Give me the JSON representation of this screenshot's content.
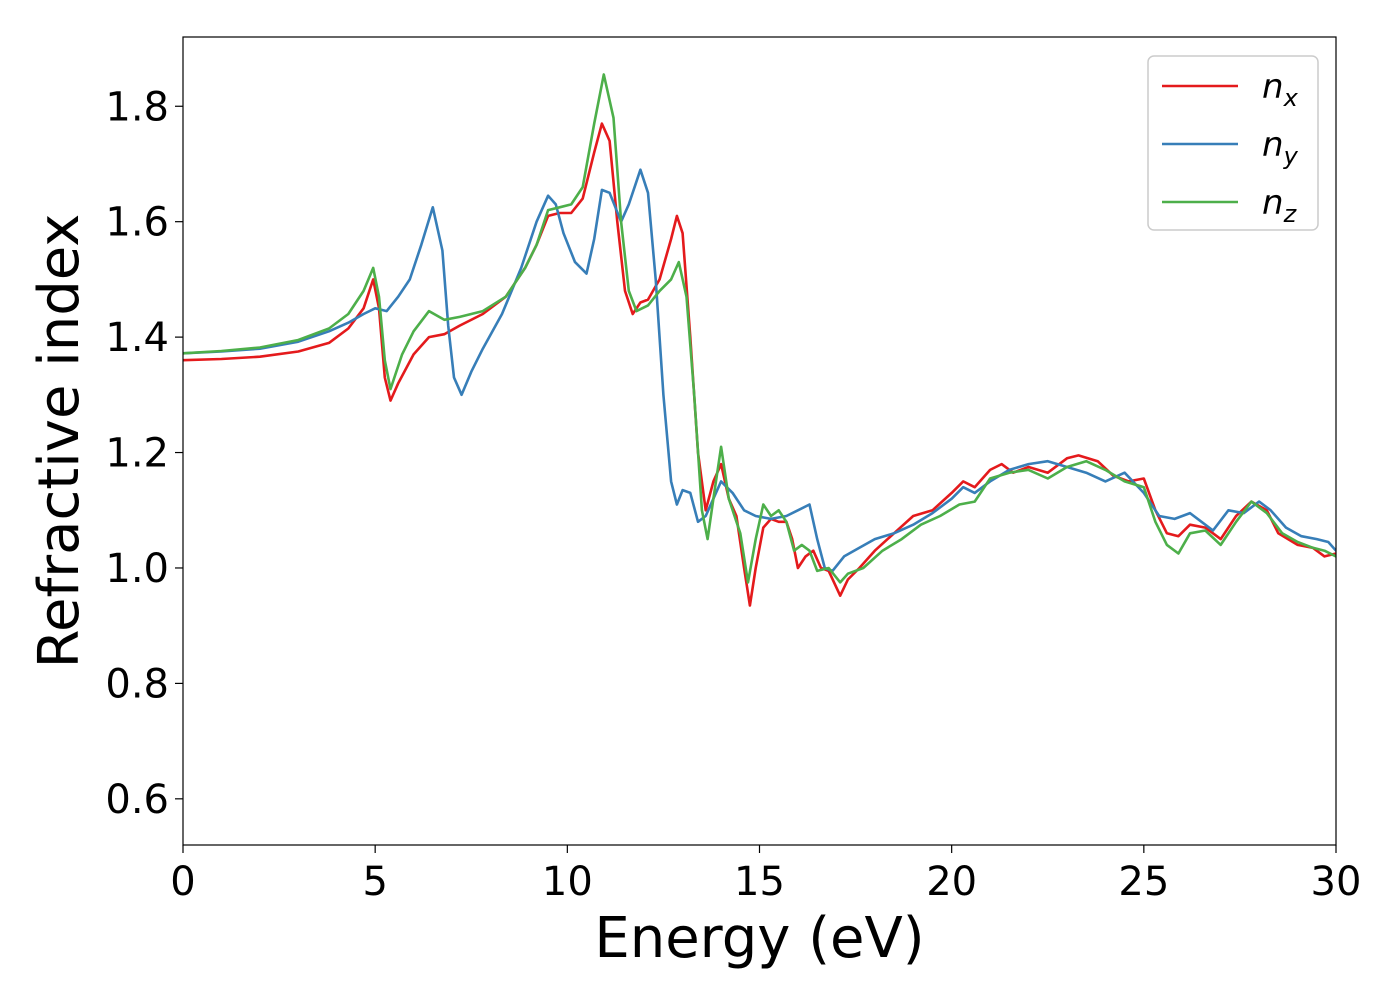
{
  "chart_data": {
    "type": "line",
    "xlabel": "Energy (eV)",
    "ylabel": "Refractive index",
    "xlim": [
      0,
      30
    ],
    "ylim": [
      0.52,
      1.92
    ],
    "xticks": [
      0,
      5,
      10,
      15,
      20,
      25,
      30
    ],
    "yticks": [
      0.6,
      0.8,
      1.0,
      1.2,
      1.4,
      1.6,
      1.8
    ],
    "ytick_labels": [
      "0.6",
      "0.8",
      "1.0",
      "1.2",
      "1.4",
      "1.6",
      "1.8"
    ],
    "grid": false,
    "legend_position": "top-right",
    "series": [
      {
        "name": "n",
        "subscript": "x",
        "color": "#e41a1c",
        "points": [
          [
            0,
            1.36
          ],
          [
            1,
            1.362
          ],
          [
            2,
            1.366
          ],
          [
            3,
            1.375
          ],
          [
            3.8,
            1.39
          ],
          [
            4.3,
            1.415
          ],
          [
            4.7,
            1.45
          ],
          [
            4.95,
            1.5
          ],
          [
            5.1,
            1.45
          ],
          [
            5.25,
            1.33
          ],
          [
            5.4,
            1.29
          ],
          [
            5.6,
            1.32
          ],
          [
            6,
            1.37
          ],
          [
            6.4,
            1.4
          ],
          [
            6.8,
            1.405
          ],
          [
            7.2,
            1.42
          ],
          [
            7.8,
            1.44
          ],
          [
            8.4,
            1.47
          ],
          [
            8.9,
            1.52
          ],
          [
            9.2,
            1.56
          ],
          [
            9.5,
            1.61
          ],
          [
            9.8,
            1.615
          ],
          [
            10.1,
            1.615
          ],
          [
            10.4,
            1.64
          ],
          [
            10.7,
            1.72
          ],
          [
            10.9,
            1.77
          ],
          [
            11.1,
            1.74
          ],
          [
            11.3,
            1.6
          ],
          [
            11.5,
            1.48
          ],
          [
            11.7,
            1.44
          ],
          [
            11.9,
            1.46
          ],
          [
            12.1,
            1.465
          ],
          [
            12.4,
            1.5
          ],
          [
            12.7,
            1.57
          ],
          [
            12.85,
            1.61
          ],
          [
            13,
            1.58
          ],
          [
            13.2,
            1.4
          ],
          [
            13.4,
            1.2
          ],
          [
            13.6,
            1.1
          ],
          [
            13.8,
            1.15
          ],
          [
            14,
            1.18
          ],
          [
            14.2,
            1.12
          ],
          [
            14.4,
            1.09
          ],
          [
            14.6,
            1.0
          ],
          [
            14.75,
            0.935
          ],
          [
            14.9,
            1.0
          ],
          [
            15.1,
            1.07
          ],
          [
            15.3,
            1.085
          ],
          [
            15.5,
            1.08
          ],
          [
            15.7,
            1.08
          ],
          [
            15.85,
            1.05
          ],
          [
            16,
            1.0
          ],
          [
            16.2,
            1.02
          ],
          [
            16.4,
            1.03
          ],
          [
            16.6,
            1.0
          ],
          [
            16.8,
            0.995
          ],
          [
            17.1,
            0.952
          ],
          [
            17.3,
            0.98
          ],
          [
            17.6,
            1.0
          ],
          [
            18,
            1.03
          ],
          [
            18.5,
            1.06
          ],
          [
            19,
            1.09
          ],
          [
            19.5,
            1.1
          ],
          [
            20,
            1.13
          ],
          [
            20.3,
            1.15
          ],
          [
            20.6,
            1.14
          ],
          [
            21,
            1.17
          ],
          [
            21.3,
            1.18
          ],
          [
            21.6,
            1.165
          ],
          [
            22,
            1.175
          ],
          [
            22.5,
            1.165
          ],
          [
            23,
            1.19
          ],
          [
            23.3,
            1.195
          ],
          [
            23.8,
            1.185
          ],
          [
            24.2,
            1.16
          ],
          [
            24.6,
            1.15
          ],
          [
            25,
            1.155
          ],
          [
            25.3,
            1.1
          ],
          [
            25.6,
            1.06
          ],
          [
            25.9,
            1.055
          ],
          [
            26.2,
            1.075
          ],
          [
            26.6,
            1.07
          ],
          [
            27,
            1.05
          ],
          [
            27.4,
            1.09
          ],
          [
            27.8,
            1.115
          ],
          [
            28.2,
            1.1
          ],
          [
            28.5,
            1.06
          ],
          [
            29,
            1.04
          ],
          [
            29.4,
            1.035
          ],
          [
            29.7,
            1.02
          ],
          [
            30,
            1.025
          ]
        ]
      },
      {
        "name": "n",
        "subscript": "y",
        "color": "#377eb8",
        "points": [
          [
            0,
            1.372
          ],
          [
            1,
            1.375
          ],
          [
            2,
            1.38
          ],
          [
            3,
            1.392
          ],
          [
            3.8,
            1.41
          ],
          [
            4.3,
            1.425
          ],
          [
            4.7,
            1.44
          ],
          [
            5,
            1.45
          ],
          [
            5.3,
            1.445
          ],
          [
            5.6,
            1.47
          ],
          [
            5.9,
            1.5
          ],
          [
            6.2,
            1.56
          ],
          [
            6.5,
            1.625
          ],
          [
            6.75,
            1.55
          ],
          [
            6.9,
            1.42
          ],
          [
            7.05,
            1.33
          ],
          [
            7.25,
            1.3
          ],
          [
            7.5,
            1.34
          ],
          [
            7.8,
            1.38
          ],
          [
            8.3,
            1.44
          ],
          [
            8.8,
            1.52
          ],
          [
            9.2,
            1.6
          ],
          [
            9.5,
            1.645
          ],
          [
            9.7,
            1.63
          ],
          [
            9.9,
            1.58
          ],
          [
            10.2,
            1.53
          ],
          [
            10.5,
            1.51
          ],
          [
            10.7,
            1.57
          ],
          [
            10.9,
            1.655
          ],
          [
            11.1,
            1.65
          ],
          [
            11.4,
            1.6
          ],
          [
            11.6,
            1.63
          ],
          [
            11.9,
            1.69
          ],
          [
            12.1,
            1.65
          ],
          [
            12.3,
            1.5
          ],
          [
            12.5,
            1.3
          ],
          [
            12.7,
            1.15
          ],
          [
            12.85,
            1.11
          ],
          [
            13,
            1.135
          ],
          [
            13.2,
            1.13
          ],
          [
            13.4,
            1.08
          ],
          [
            13.6,
            1.09
          ],
          [
            13.8,
            1.12
          ],
          [
            14,
            1.15
          ],
          [
            14.3,
            1.13
          ],
          [
            14.6,
            1.1
          ],
          [
            14.9,
            1.09
          ],
          [
            15.3,
            1.085
          ],
          [
            15.7,
            1.09
          ],
          [
            16,
            1.1
          ],
          [
            16.3,
            1.11
          ],
          [
            16.5,
            1.05
          ],
          [
            16.7,
            1.0
          ],
          [
            16.9,
            0.995
          ],
          [
            17.2,
            1.02
          ],
          [
            17.6,
            1.035
          ],
          [
            18,
            1.05
          ],
          [
            18.5,
            1.06
          ],
          [
            19,
            1.075
          ],
          [
            19.5,
            1.095
          ],
          [
            20,
            1.12
          ],
          [
            20.3,
            1.14
          ],
          [
            20.6,
            1.13
          ],
          [
            21,
            1.15
          ],
          [
            21.5,
            1.17
          ],
          [
            22,
            1.18
          ],
          [
            22.5,
            1.185
          ],
          [
            23,
            1.175
          ],
          [
            23.5,
            1.165
          ],
          [
            24,
            1.15
          ],
          [
            24.5,
            1.165
          ],
          [
            25,
            1.13
          ],
          [
            25.4,
            1.09
          ],
          [
            25.8,
            1.085
          ],
          [
            26.2,
            1.095
          ],
          [
            26.5,
            1.08
          ],
          [
            26.8,
            1.065
          ],
          [
            27.2,
            1.1
          ],
          [
            27.6,
            1.095
          ],
          [
            28,
            1.115
          ],
          [
            28.3,
            1.1
          ],
          [
            28.7,
            1.07
          ],
          [
            29.1,
            1.055
          ],
          [
            29.5,
            1.05
          ],
          [
            29.8,
            1.045
          ],
          [
            30,
            1.03
          ]
        ]
      },
      {
        "name": "n",
        "subscript": "z",
        "color": "#4daf4a",
        "points": [
          [
            0,
            1.372
          ],
          [
            1,
            1.376
          ],
          [
            2,
            1.382
          ],
          [
            3,
            1.395
          ],
          [
            3.8,
            1.415
          ],
          [
            4.3,
            1.44
          ],
          [
            4.7,
            1.48
          ],
          [
            4.95,
            1.52
          ],
          [
            5.1,
            1.47
          ],
          [
            5.25,
            1.36
          ],
          [
            5.4,
            1.31
          ],
          [
            5.7,
            1.37
          ],
          [
            6,
            1.41
          ],
          [
            6.4,
            1.445
          ],
          [
            6.8,
            1.43
          ],
          [
            7.2,
            1.435
          ],
          [
            7.8,
            1.445
          ],
          [
            8.4,
            1.47
          ],
          [
            8.9,
            1.52
          ],
          [
            9.2,
            1.56
          ],
          [
            9.5,
            1.62
          ],
          [
            9.8,
            1.625
          ],
          [
            10.1,
            1.63
          ],
          [
            10.4,
            1.66
          ],
          [
            10.7,
            1.77
          ],
          [
            10.95,
            1.855
          ],
          [
            11.2,
            1.78
          ],
          [
            11.4,
            1.6
          ],
          [
            11.6,
            1.48
          ],
          [
            11.8,
            1.445
          ],
          [
            12.1,
            1.455
          ],
          [
            12.4,
            1.48
          ],
          [
            12.7,
            1.5
          ],
          [
            12.9,
            1.53
          ],
          [
            13.1,
            1.47
          ],
          [
            13.3,
            1.3
          ],
          [
            13.5,
            1.1
          ],
          [
            13.65,
            1.05
          ],
          [
            13.8,
            1.12
          ],
          [
            14,
            1.21
          ],
          [
            14.2,
            1.12
          ],
          [
            14.5,
            1.06
          ],
          [
            14.7,
            0.975
          ],
          [
            14.9,
            1.05
          ],
          [
            15.1,
            1.11
          ],
          [
            15.3,
            1.09
          ],
          [
            15.5,
            1.1
          ],
          [
            15.7,
            1.08
          ],
          [
            15.9,
            1.03
          ],
          [
            16.1,
            1.04
          ],
          [
            16.3,
            1.03
          ],
          [
            16.5,
            0.995
          ],
          [
            16.8,
            1.0
          ],
          [
            17.1,
            0.975
          ],
          [
            17.3,
            0.99
          ],
          [
            17.7,
            1.0
          ],
          [
            18.2,
            1.03
          ],
          [
            18.7,
            1.05
          ],
          [
            19.2,
            1.075
          ],
          [
            19.7,
            1.09
          ],
          [
            20.2,
            1.11
          ],
          [
            20.6,
            1.115
          ],
          [
            21,
            1.155
          ],
          [
            21.5,
            1.165
          ],
          [
            22,
            1.17
          ],
          [
            22.5,
            1.155
          ],
          [
            23,
            1.175
          ],
          [
            23.5,
            1.185
          ],
          [
            24,
            1.17
          ],
          [
            24.5,
            1.15
          ],
          [
            25,
            1.14
          ],
          [
            25.3,
            1.08
          ],
          [
            25.6,
            1.04
          ],
          [
            25.9,
            1.025
          ],
          [
            26.2,
            1.06
          ],
          [
            26.6,
            1.065
          ],
          [
            27,
            1.04
          ],
          [
            27.4,
            1.08
          ],
          [
            27.8,
            1.115
          ],
          [
            28.2,
            1.095
          ],
          [
            28.6,
            1.06
          ],
          [
            29,
            1.045
          ],
          [
            29.4,
            1.035
          ],
          [
            29.7,
            1.03
          ],
          [
            30,
            1.02
          ]
        ]
      }
    ]
  }
}
